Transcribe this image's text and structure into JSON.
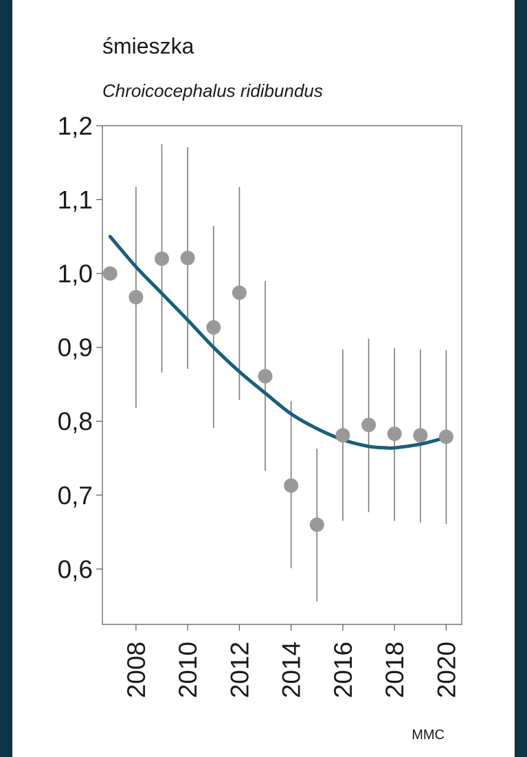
{
  "chart_data": {
    "type": "scatter",
    "title": "śmieszka",
    "subtitle": "Chroicocephalus ridibundus",
    "source": "MMC",
    "xlim": [
      2006.7,
      2020.6
    ],
    "ylim": [
      0.525,
      1.2
    ],
    "yticks": [
      {
        "value": 1.2,
        "label": "1,2"
      },
      {
        "value": 1.1,
        "label": "1,1"
      },
      {
        "value": 1.0,
        "label": "1,0"
      },
      {
        "value": 0.9,
        "label": "0,9"
      },
      {
        "value": 0.8,
        "label": "0,8"
      },
      {
        "value": 0.7,
        "label": "0,7"
      },
      {
        "value": 0.6,
        "label": "0,6"
      }
    ],
    "xticks": [
      {
        "value": 2008,
        "label": "2008"
      },
      {
        "value": 2010,
        "label": "2010"
      },
      {
        "value": 2012,
        "label": "2012"
      },
      {
        "value": 2014,
        "label": "2014"
      },
      {
        "value": 2016,
        "label": "2016"
      },
      {
        "value": 2018,
        "label": "2018"
      },
      {
        "value": 2020,
        "label": "2020"
      }
    ],
    "points": [
      {
        "x": 2007,
        "y": 1.0,
        "lo": null,
        "hi": null
      },
      {
        "x": 2008,
        "y": 0.968,
        "lo": 0.818,
        "hi": 1.117
      },
      {
        "x": 2009,
        "y": 1.02,
        "lo": 0.866,
        "hi": 1.175
      },
      {
        "x": 2010,
        "y": 1.021,
        "lo": 0.871,
        "hi": 1.171
      },
      {
        "x": 2011,
        "y": 0.927,
        "lo": 0.791,
        "hi": 1.064
      },
      {
        "x": 2012,
        "y": 0.974,
        "lo": 0.829,
        "hi": 1.117
      },
      {
        "x": 2013,
        "y": 0.861,
        "lo": 0.733,
        "hi": 0.99
      },
      {
        "x": 2014,
        "y": 0.713,
        "lo": 0.601,
        "hi": 0.827
      },
      {
        "x": 2015,
        "y": 0.66,
        "lo": 0.556,
        "hi": 0.763
      },
      {
        "x": 2016,
        "y": 0.781,
        "lo": 0.665,
        "hi": 0.897
      },
      {
        "x": 2017,
        "y": 0.795,
        "lo": 0.677,
        "hi": 0.912
      },
      {
        "x": 2018,
        "y": 0.783,
        "lo": 0.665,
        "hi": 0.899
      },
      {
        "x": 2019,
        "y": 0.781,
        "lo": 0.663,
        "hi": 0.897
      },
      {
        "x": 2020,
        "y": 0.779,
        "lo": 0.661,
        "hi": 0.896
      }
    ],
    "trend": {
      "x": [
        2007,
        2008,
        2009,
        2010,
        2011,
        2012,
        2013,
        2014,
        2015,
        2016,
        2017,
        2017.7,
        2018,
        2019,
        2020
      ],
      "y": [
        1.05,
        1.009,
        0.973,
        0.937,
        0.9,
        0.867,
        0.838,
        0.81,
        0.79,
        0.775,
        0.766,
        0.764,
        0.764,
        0.769,
        0.778
      ]
    },
    "grid": false,
    "colors": {
      "frame": "#0f3446",
      "point": "#999999",
      "errorbar": "#7a7a7a",
      "trend": "#1a5f7a",
      "axis": "#555555"
    }
  }
}
